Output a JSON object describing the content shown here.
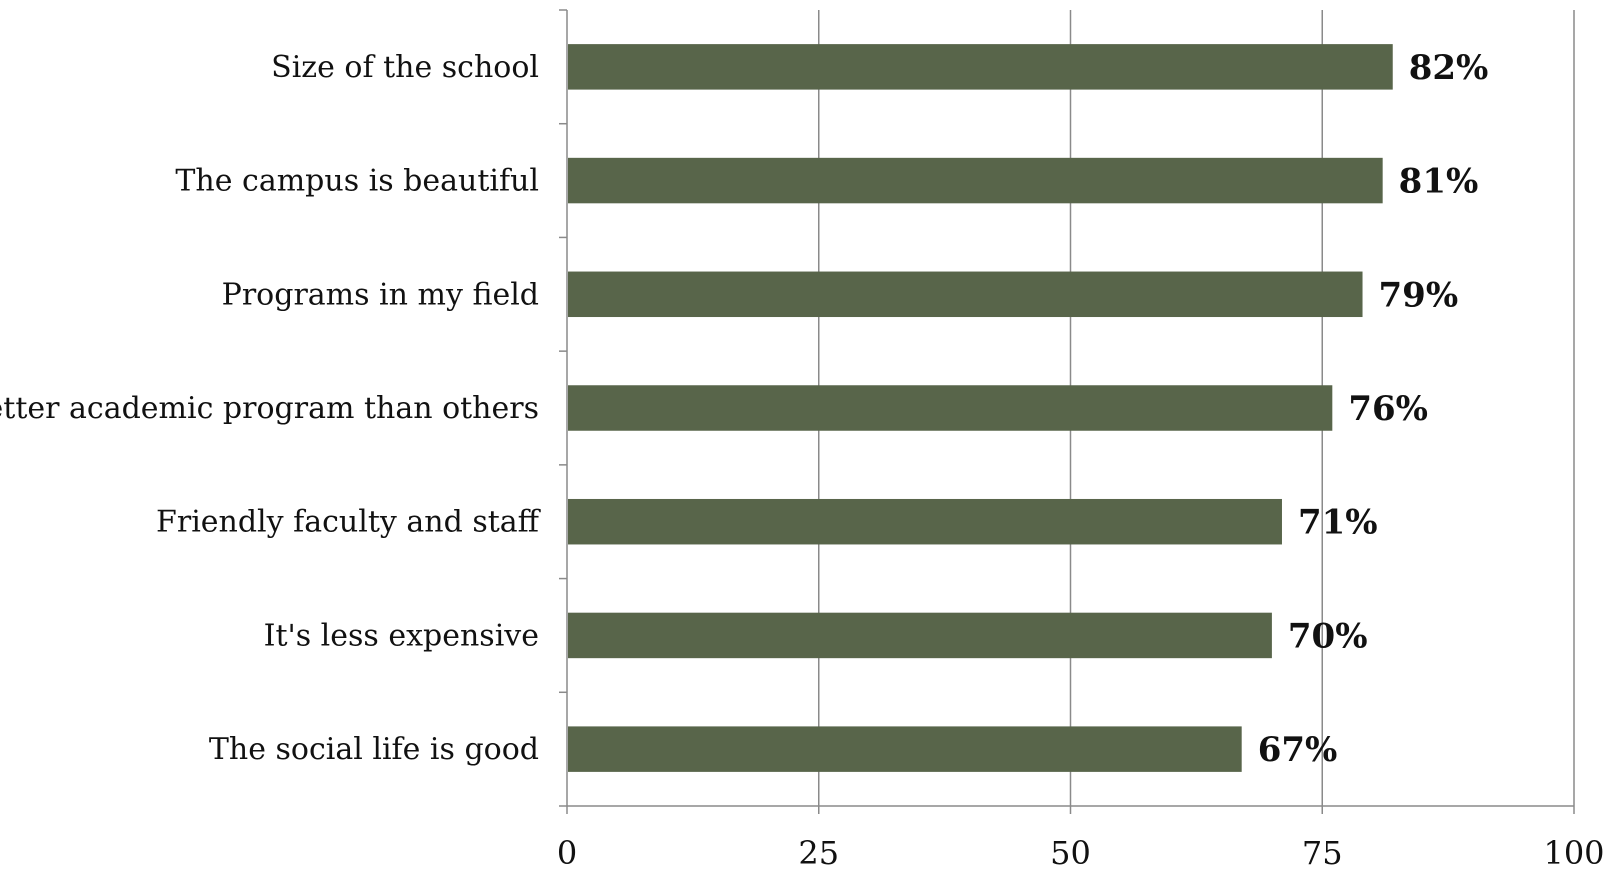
{
  "chart_data": {
    "type": "bar",
    "orientation": "horizontal",
    "title": "",
    "xlabel": "",
    "ylabel": "",
    "categories": [
      "Size of the school",
      "The campus is beautiful",
      "Programs in my field",
      "Better academic program than others",
      "Friendly faculty and staff",
      "It's less expensive",
      "The social life is good"
    ],
    "values": [
      82,
      81,
      79,
      76,
      71,
      70,
      67
    ],
    "data_labels": [
      "82%",
      "81%",
      "79%",
      "76%",
      "71%",
      "70%",
      "67%"
    ],
    "xlim": [
      0,
      100
    ],
    "x_ticks": [
      0,
      25,
      50,
      75,
      100
    ],
    "x_tick_labels": [
      "0",
      "25",
      "50",
      "75",
      "100"
    ],
    "grid": "vertical",
    "legend": "none",
    "colors": {
      "bar": "#58654a",
      "grid": "#8a8a8a",
      "axis": "#8a8a8a",
      "text": "#111111"
    }
  }
}
